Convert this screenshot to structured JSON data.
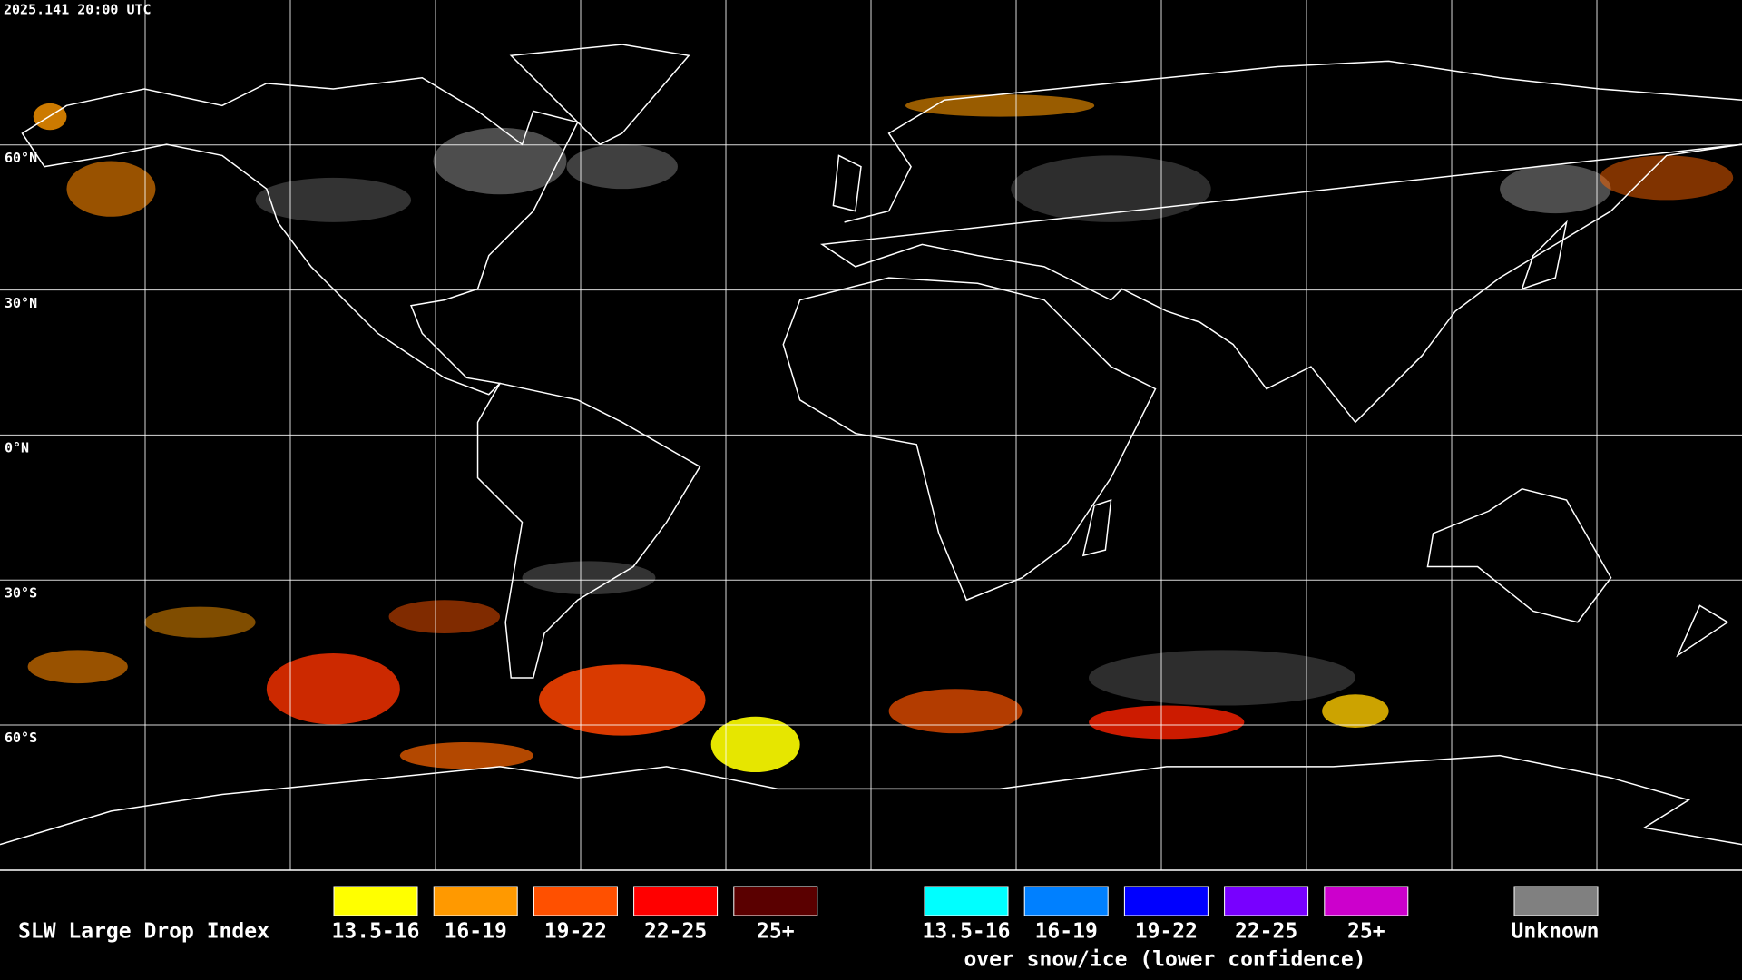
{
  "header": {
    "timestamp": "2025.141 20:00 UTC"
  },
  "map": {
    "lat_labels": [
      "60°N",
      "30°N",
      "0°N",
      "30°S",
      "60°S"
    ]
  },
  "legend": {
    "title": "SLW Large Drop Index",
    "items": [
      {
        "label": "13.5-16",
        "color": "#ffff00"
      },
      {
        "label": "16-19",
        "color": "#ff9900"
      },
      {
        "label": "19-22",
        "color": "#ff5000"
      },
      {
        "label": "22-25",
        "color": "#ff0000"
      },
      {
        "label": "25+",
        "color": "#5a0000"
      }
    ],
    "snow_items": [
      {
        "label": "13.5-16",
        "color": "#00ffff"
      },
      {
        "label": "16-19",
        "color": "#0080ff"
      },
      {
        "label": "19-22",
        "color": "#0000ff"
      },
      {
        "label": "22-25",
        "color": "#7800ff"
      },
      {
        "label": "25+",
        "color": "#cc00cc"
      }
    ],
    "snow_caption": "over snow/ice (lower confidence)",
    "unknown": {
      "label": "Unknown",
      "color": "#808080"
    }
  }
}
